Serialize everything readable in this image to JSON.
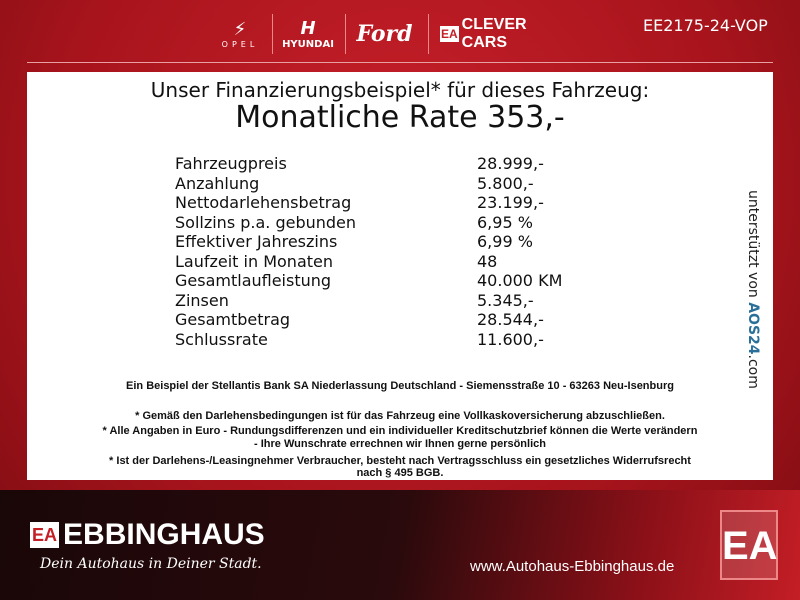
{
  "header": {
    "brands": [
      "OPEL",
      "HYUNDAI",
      "Ford",
      "CLEVER CARS"
    ],
    "clever_prefix": "EA",
    "code": "EE2175-24-VOP"
  },
  "panel": {
    "title": "Unser Finanzierungsbeispiel* für dieses Fahrzeug:",
    "rate": "Monatliche Rate 353,-",
    "rows": [
      {
        "label": "Fahrzeugpreis",
        "value": "28.999,-"
      },
      {
        "label": "Anzahlung",
        "value": "5.800,-"
      },
      {
        "label": "Nettodarlehensbetrag",
        "value": "23.199,-"
      },
      {
        "label": "Sollzins p.a. gebunden",
        "value": "6,95 %"
      },
      {
        "label": "Effektiver Jahreszins",
        "value": "6,99 %"
      },
      {
        "label": "Laufzeit in Monaten",
        "value": "48"
      },
      {
        "label": "Gesamtlaufleistung",
        "value": "40.000 KM"
      },
      {
        "label": "Zinsen",
        "value": "5.345,-"
      },
      {
        "label": "Gesamtbetrag",
        "value": "28.544,-"
      },
      {
        "label": "Schlussrate",
        "value": "11.600,-"
      }
    ],
    "side": {
      "text": "unterstützt von",
      "brand": "AOS24",
      "suffix": ".com"
    },
    "bank": "Ein Beispiel der Stellantis Bank SA Niederlassung Deutschland - Siemensstraße 10 - 63263 Neu-Isenburg",
    "notes": [
      "* Gemäß den Darlehensbedingungen ist für das Fahrzeug eine Vollkaskoversicherung abzuschließen.",
      "* Alle Angaben in Euro - Rundungsdifferenzen und ein individueller Kreditschutzbrief können die Werte verändern",
      "- Ihre Wunschrate errechnen wir Ihnen gerne persönlich",
      "* Ist der Darlehens-/Leasingnehmer Verbraucher, besteht nach Vertragsschluss ein gesetzliches Widerrufsrecht",
      "nach § 495 BGB."
    ]
  },
  "footer": {
    "logo_prefix": "EA",
    "name": "EBBINGHAUS",
    "slogan": "Dein Autohaus in Deiner Stadt.",
    "website": "www.Autohaus-Ebbinghaus.de",
    "big_logo": "EA"
  }
}
